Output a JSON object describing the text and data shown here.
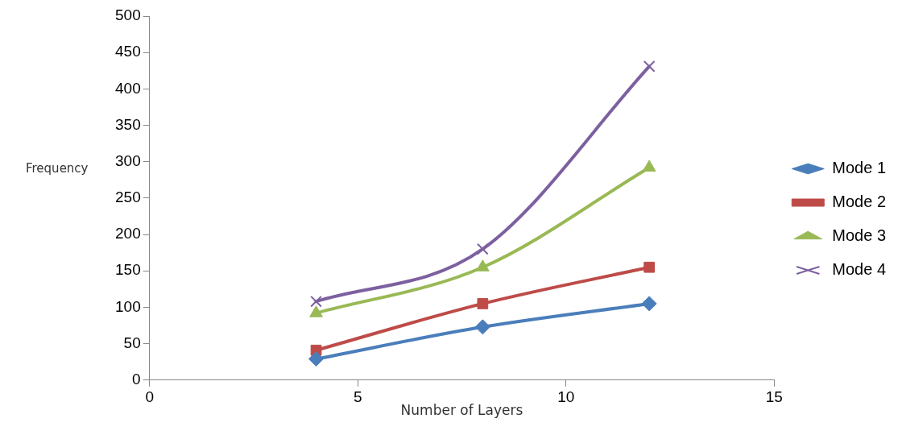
{
  "chart_data": {
    "type": "line",
    "xlabel": "Number of Layers",
    "ylabel": "Frequency",
    "x": [
      4,
      8,
      12
    ],
    "series": [
      {
        "name": "Mode 1",
        "color": "#4a7ebb",
        "marker": "diamond",
        "values": [
          29,
          73,
          105
        ]
      },
      {
        "name": "Mode 2",
        "color": "#be4b48",
        "marker": "square",
        "values": [
          41,
          105,
          155
        ]
      },
      {
        "name": "Mode 3",
        "color": "#98b954",
        "marker": "triangle",
        "values": [
          92,
          155,
          292
        ]
      },
      {
        "name": "Mode 4",
        "color": "#7d60a0",
        "marker": "cross",
        "values": [
          108,
          180,
          431
        ]
      }
    ],
    "xlim": [
      0,
      15
    ],
    "xticks": [
      0,
      5,
      10,
      15
    ],
    "ylim": [
      0,
      500
    ],
    "yticks": [
      0,
      50,
      100,
      150,
      200,
      250,
      300,
      350,
      400,
      450,
      500
    ],
    "grid": false,
    "legend": "right"
  }
}
